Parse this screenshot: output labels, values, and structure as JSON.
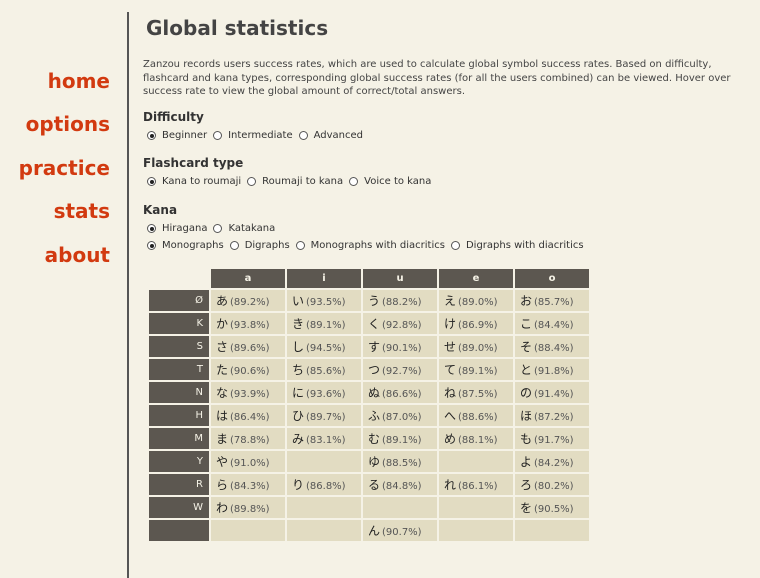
{
  "nav": {
    "items": [
      "home",
      "options",
      "practice",
      "stats",
      "about"
    ]
  },
  "page": {
    "title": "Global statistics",
    "intro": "Zanzou records users success rates, which are used to calculate global symbol success rates. Based on difficulty, flashcard and kana types, corresponding global success rates (for all the users combined) can be viewed. Hover over success rate to view the global amount of correct/total answers."
  },
  "difficulty": {
    "title": "Difficulty",
    "options": [
      "Beginner",
      "Intermediate",
      "Advanced"
    ],
    "selected": 0
  },
  "flashcard": {
    "title": "Flashcard type",
    "options": [
      "Kana to roumaji",
      "Roumaji to kana",
      "Voice to kana"
    ],
    "selected": 0
  },
  "kana": {
    "title": "Kana",
    "script_options": [
      "Hiragana",
      "Katakana"
    ],
    "script_selected": 0,
    "type_options": [
      "Monographs",
      "Digraphs",
      "Monographs with diacritics",
      "Digraphs with diacritics"
    ],
    "type_selected": 0
  },
  "table": {
    "columns": [
      "a",
      "i",
      "u",
      "e",
      "o"
    ],
    "rows": [
      {
        "label": "Ø",
        "cells": [
          [
            "あ",
            "(89.2%)"
          ],
          [
            "い",
            "(93.5%)"
          ],
          [
            "う",
            "(88.2%)"
          ],
          [
            "え",
            "(89.0%)"
          ],
          [
            "お",
            "(85.7%)"
          ]
        ]
      },
      {
        "label": "K",
        "cells": [
          [
            "か",
            "(93.8%)"
          ],
          [
            "き",
            "(89.1%)"
          ],
          [
            "く",
            "(92.8%)"
          ],
          [
            "け",
            "(86.9%)"
          ],
          [
            "こ",
            "(84.4%)"
          ]
        ]
      },
      {
        "label": "S",
        "cells": [
          [
            "さ",
            "(89.6%)"
          ],
          [
            "し",
            "(94.5%)"
          ],
          [
            "す",
            "(90.1%)"
          ],
          [
            "せ",
            "(89.0%)"
          ],
          [
            "そ",
            "(88.4%)"
          ]
        ]
      },
      {
        "label": "T",
        "cells": [
          [
            "た",
            "(90.6%)"
          ],
          [
            "ち",
            "(85.6%)"
          ],
          [
            "つ",
            "(92.7%)"
          ],
          [
            "て",
            "(89.1%)"
          ],
          [
            "と",
            "(91.8%)"
          ]
        ]
      },
      {
        "label": "N",
        "cells": [
          [
            "な",
            "(93.9%)"
          ],
          [
            "に",
            "(93.6%)"
          ],
          [
            "ぬ",
            "(86.6%)"
          ],
          [
            "ね",
            "(87.5%)"
          ],
          [
            "の",
            "(91.4%)"
          ]
        ]
      },
      {
        "label": "H",
        "cells": [
          [
            "は",
            "(86.4%)"
          ],
          [
            "ひ",
            "(89.7%)"
          ],
          [
            "ふ",
            "(87.0%)"
          ],
          [
            "へ",
            "(88.6%)"
          ],
          [
            "ほ",
            "(87.2%)"
          ]
        ]
      },
      {
        "label": "M",
        "cells": [
          [
            "ま",
            "(78.8%)"
          ],
          [
            "み",
            "(83.1%)"
          ],
          [
            "む",
            "(89.1%)"
          ],
          [
            "め",
            "(88.1%)"
          ],
          [
            "も",
            "(91.7%)"
          ]
        ]
      },
      {
        "label": "Y",
        "cells": [
          [
            "や",
            "(91.0%)"
          ],
          null,
          [
            "ゆ",
            "(88.5%)"
          ],
          null,
          [
            "よ",
            "(84.2%)"
          ]
        ]
      },
      {
        "label": "R",
        "cells": [
          [
            "ら",
            "(84.3%)"
          ],
          [
            "り",
            "(86.8%)"
          ],
          [
            "る",
            "(84.8%)"
          ],
          [
            "れ",
            "(86.1%)"
          ],
          [
            "ろ",
            "(80.2%)"
          ]
        ]
      },
      {
        "label": "W",
        "cells": [
          [
            "わ",
            "(89.8%)"
          ],
          null,
          null,
          null,
          [
            "を",
            "(90.5%)"
          ]
        ]
      },
      {
        "label": "",
        "cells": [
          null,
          null,
          [
            "ん",
            "(90.7%)"
          ],
          null,
          null
        ]
      }
    ]
  }
}
